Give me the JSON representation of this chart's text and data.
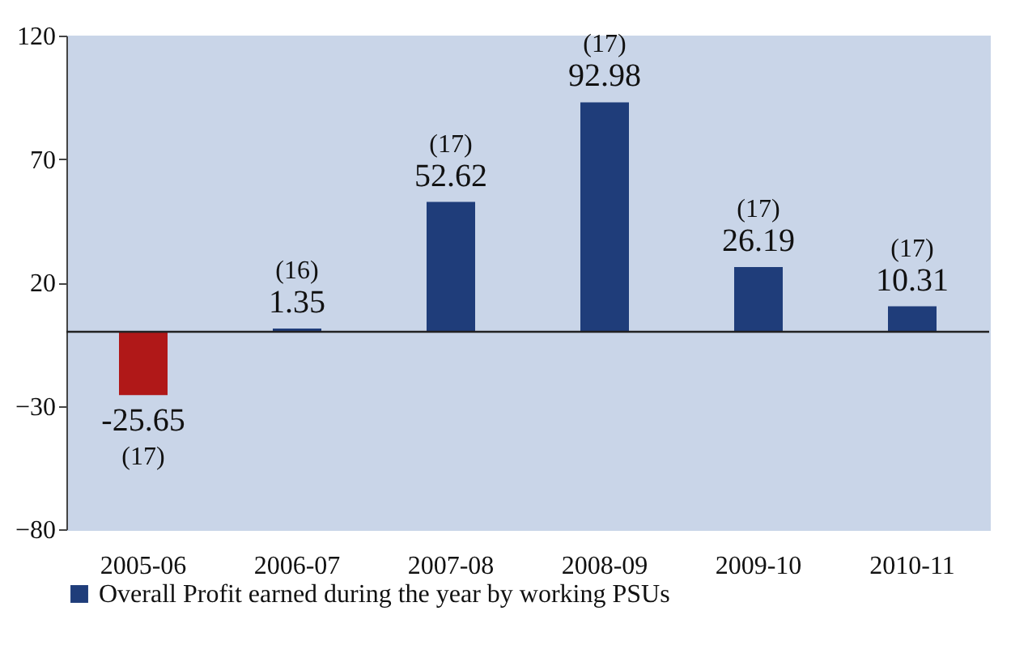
{
  "chart_data": {
    "type": "bar",
    "categories": [
      "2005-06",
      "2006-07",
      "2007-08",
      "2008-09",
      "2009-10",
      "2010-11"
    ],
    "series": [
      {
        "name": "Overall Profit earned during the year by working PSUs",
        "color": "#1f3d7a",
        "values": [
          -25.65,
          1.35,
          52.62,
          92.98,
          26.19,
          10.31
        ],
        "colors": [
          "#b01818",
          "#1f3d7a",
          "#1f3d7a",
          "#1f3d7a",
          "#1f3d7a",
          "#1f3d7a"
        ]
      }
    ],
    "ylim": [
      -80,
      120
    ],
    "yticks": [
      -80,
      -30,
      20,
      70,
      120
    ],
    "data_labels": true,
    "legend": "bottom left",
    "ref_lines": [
      {
        "axis": "y",
        "value": 0
      }
    ],
    "annotations": [
      {
        "text": "(17)",
        "x": "2005-06",
        "y": -25.65
      },
      {
        "text": "(16)",
        "x": "2006-07",
        "y": 1.35
      },
      {
        "text": "(17)",
        "x": "2007-08",
        "y": 52.62
      },
      {
        "text": "(17)",
        "x": "2008-09",
        "y": 92.98
      },
      {
        "text": "(17)",
        "x": "2009-10",
        "y": 26.19
      },
      {
        "text": "(17)",
        "x": "2010-11",
        "y": 10.31
      }
    ]
  }
}
